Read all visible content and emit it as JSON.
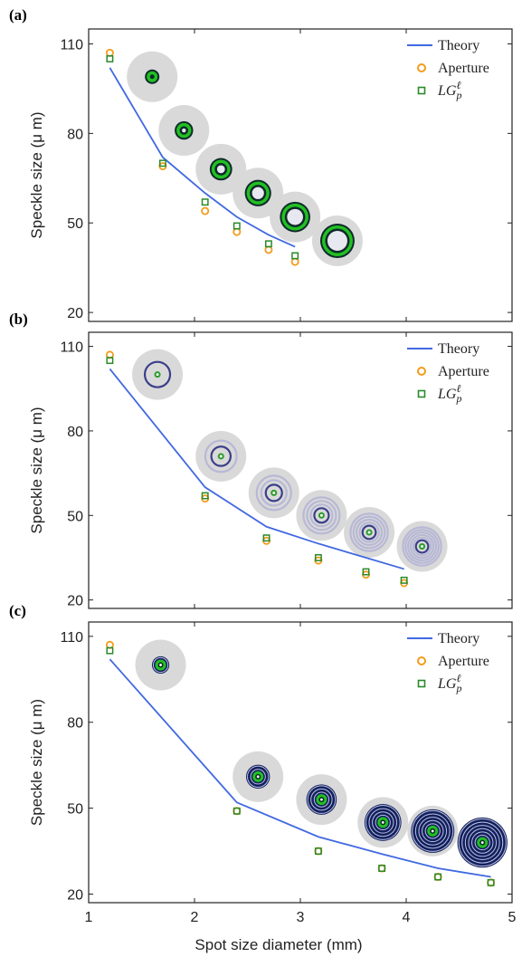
{
  "figure": {
    "x_axis_label": "Spot size diameter (mm)",
    "x_ticks": [
      "1",
      "2",
      "3",
      "4",
      "5"
    ]
  },
  "colors": {
    "theory": "#4169e1",
    "aperture": "#f39c1d",
    "lg": "#2a8a2a",
    "inset_bg": "#d9d9d9",
    "ring_green": "#22c022",
    "ring_navy": "#14205a",
    "ring_pale": "#b8b8d6"
  },
  "chart_data": [
    {
      "type": "line",
      "panel_label": "(a)",
      "ylabel": "Speckle size (μ m)",
      "xlim": [
        1,
        5
      ],
      "ylim": [
        17,
        115
      ],
      "yticks": [
        "20",
        "50",
        "80",
        "110"
      ],
      "legend_position": "top-right",
      "legend": [
        "Theory",
        "Aperture",
        "LG_p^ℓ"
      ],
      "series": [
        {
          "name": "Theory",
          "style": "line",
          "x": [
            1.2,
            1.7,
            2.1,
            2.4,
            2.7,
            2.95
          ],
          "y": [
            102,
            72,
            60,
            52,
            46,
            42
          ]
        },
        {
          "name": "Aperture",
          "style": "circle",
          "x": [
            1.2,
            1.7,
            2.1,
            2.4,
            2.7,
            2.95
          ],
          "y": [
            107,
            69,
            54,
            47,
            41,
            37
          ]
        },
        {
          "name": "LG_p^ℓ",
          "style": "square",
          "x": [
            1.2,
            1.7,
            2.1,
            2.4,
            2.7,
            2.95
          ],
          "y": [
            105,
            70,
            57,
            49,
            43,
            39
          ]
        }
      ],
      "insets": {
        "style": "green-ring",
        "x": [
          1.6,
          1.9,
          2.25,
          2.6,
          2.95,
          3.35
        ],
        "y": [
          99,
          81,
          68,
          60,
          52,
          44
        ]
      }
    },
    {
      "type": "line",
      "panel_label": "(b)",
      "ylabel": "Speckle size (μ m)",
      "xlim": [
        1,
        5
      ],
      "ylim": [
        17,
        115
      ],
      "yticks": [
        "20",
        "50",
        "80",
        "110"
      ],
      "legend_position": "top-right",
      "legend": [
        "Theory",
        "Aperture",
        "LG_p^ℓ"
      ],
      "series": [
        {
          "name": "Theory",
          "style": "line",
          "x": [
            1.2,
            2.1,
            2.68,
            3.17,
            3.62,
            3.98
          ],
          "y": [
            102,
            60,
            46,
            40,
            35,
            31
          ]
        },
        {
          "name": "Aperture",
          "style": "circle",
          "x": [
            1.2,
            2.1,
            2.68,
            3.17,
            3.62,
            3.98
          ],
          "y": [
            107,
            56,
            41,
            34,
            29,
            26
          ]
        },
        {
          "name": "LG_p^ℓ",
          "style": "square",
          "x": [
            1.2,
            2.1,
            2.68,
            3.17,
            3.62,
            3.98
          ],
          "y": [
            105,
            57,
            42,
            35,
            30,
            27
          ]
        }
      ],
      "insets": {
        "style": "pale-rings",
        "x": [
          1.65,
          2.25,
          2.75,
          3.2,
          3.65,
          4.15
        ],
        "y": [
          100,
          71,
          58,
          50,
          44,
          39
        ]
      }
    },
    {
      "type": "line",
      "panel_label": "(c)",
      "ylabel": "Speckle size (μ m)",
      "xlim": [
        1,
        5
      ],
      "ylim": [
        17,
        115
      ],
      "yticks": [
        "20",
        "50",
        "80",
        "110"
      ],
      "legend_position": "top-right",
      "legend": [
        "Theory",
        "Aperture",
        "LG_p^ℓ"
      ],
      "series": [
        {
          "name": "Theory",
          "style": "line",
          "x": [
            1.2,
            2.4,
            3.17,
            3.77,
            4.3,
            4.8
          ],
          "y": [
            102,
            52,
            40,
            34,
            29,
            26
          ]
        },
        {
          "name": "Aperture",
          "style": "circle",
          "x": [
            1.2,
            2.4,
            3.17,
            3.77,
            4.3,
            4.8
          ],
          "y": [
            107,
            49,
            35,
            29,
            26,
            24
          ]
        },
        {
          "name": "LG_p^ℓ",
          "style": "square",
          "x": [
            1.2,
            2.4,
            3.17,
            3.77,
            4.3,
            4.8
          ],
          "y": [
            105,
            49,
            35,
            29,
            26,
            24
          ]
        }
      ],
      "insets": {
        "style": "navy-rings",
        "x": [
          1.68,
          2.6,
          3.2,
          3.78,
          4.25,
          4.72
        ],
        "y": [
          100,
          61,
          53,
          45,
          42,
          38
        ]
      }
    }
  ]
}
